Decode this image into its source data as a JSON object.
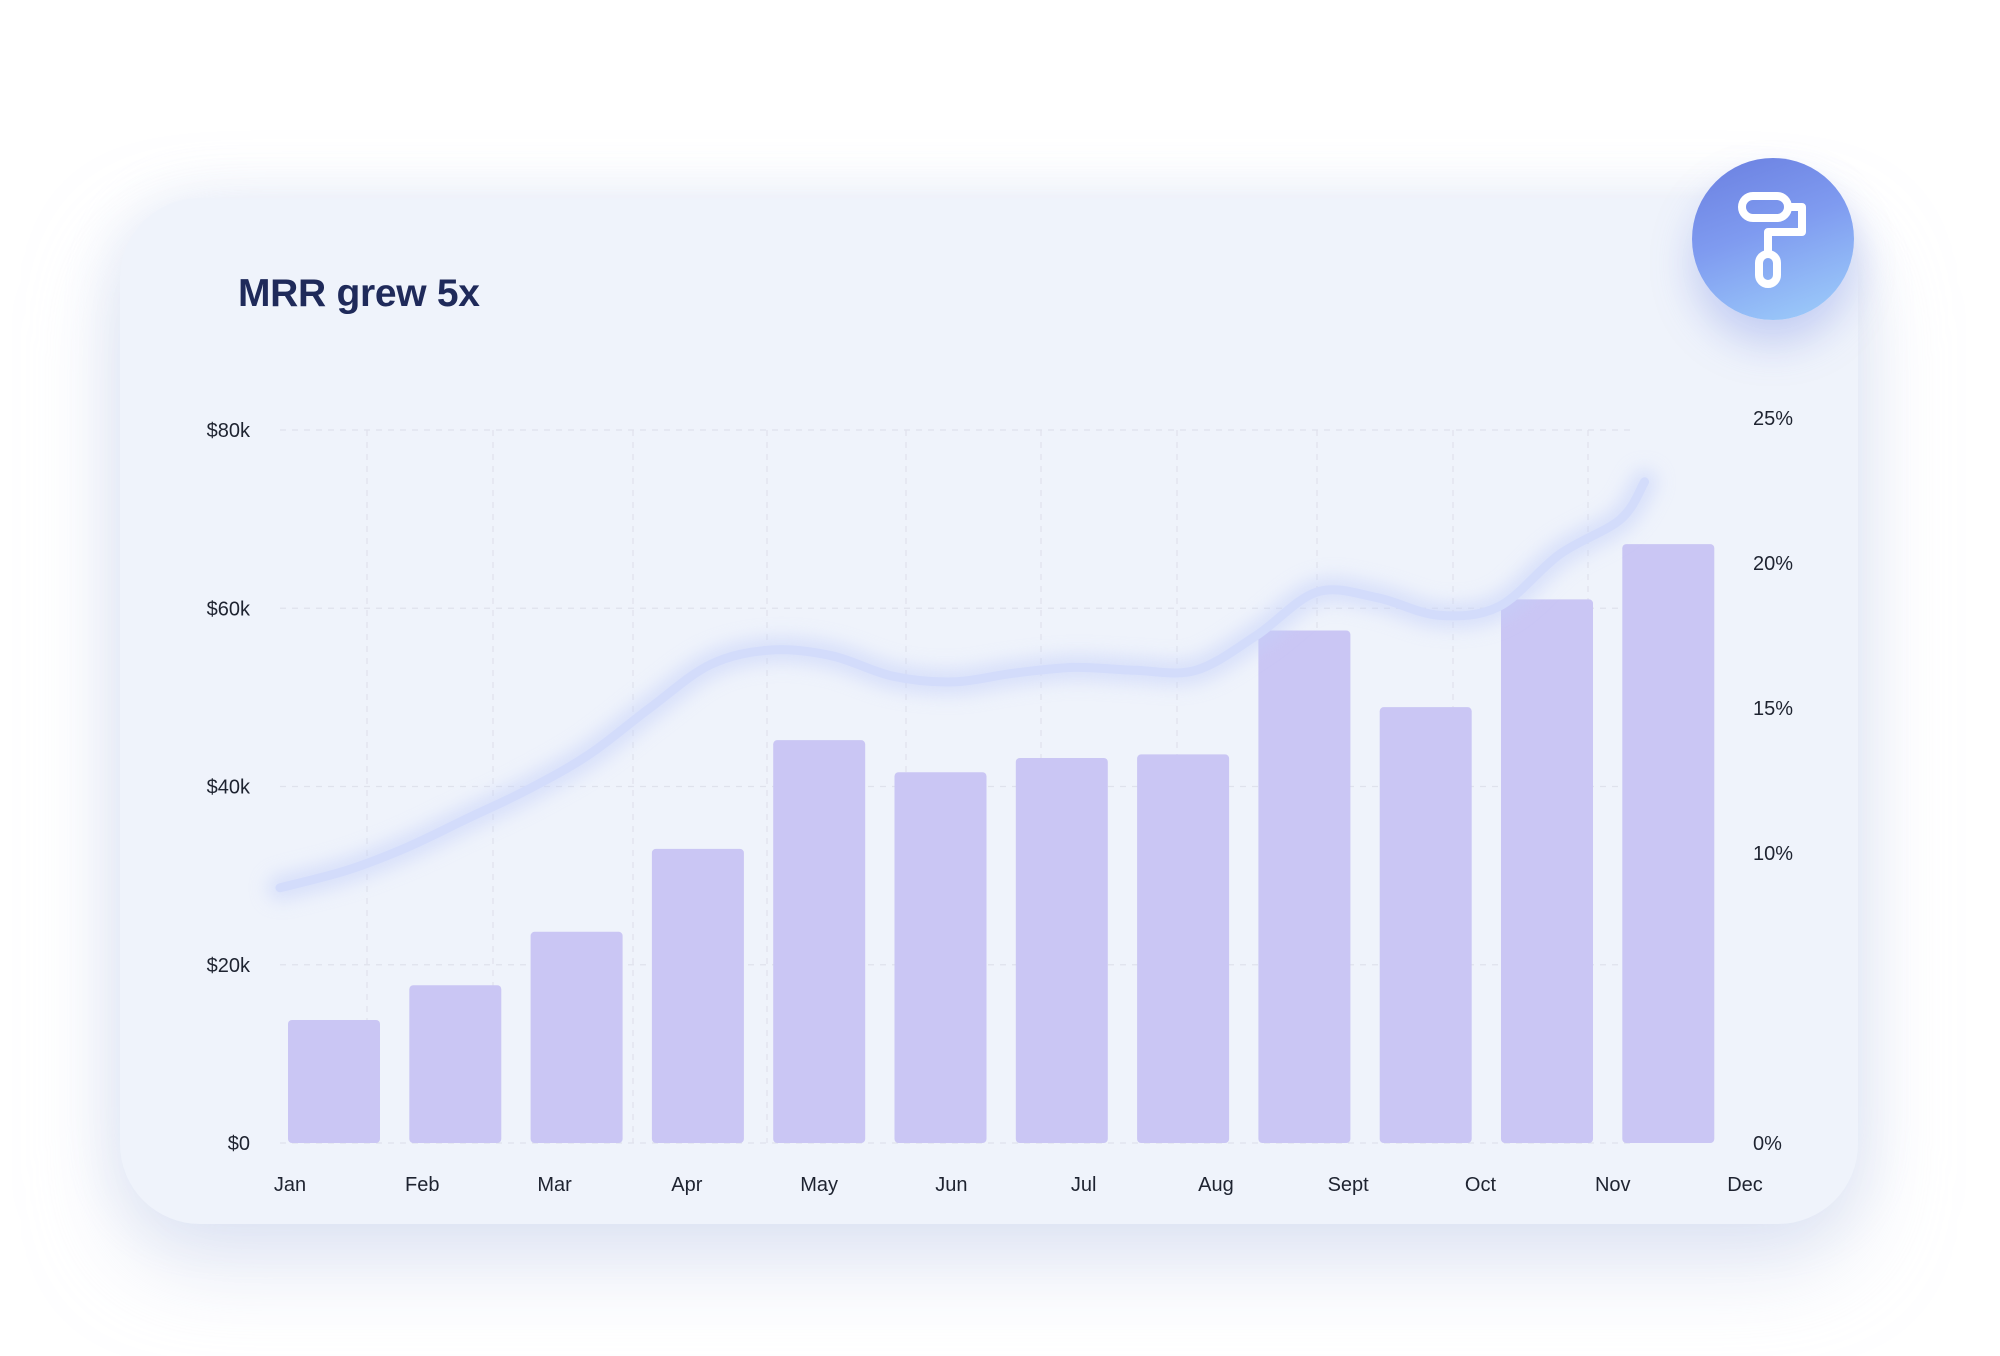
{
  "chart_data": {
    "type": "bar",
    "title": "MRR grew 5x",
    "categories": [
      "Jan",
      "Feb",
      "Mar",
      "Apr",
      "May",
      "Jun",
      "Jul",
      "Aug",
      "Sept",
      "Oct",
      "Nov",
      "Dec"
    ],
    "series": [
      {
        "type": "bar",
        "axis": "left",
        "values": [
          13800,
          17700,
          23700,
          33000,
          45200,
          41600,
          43200,
          43600,
          57500,
          48900,
          61000,
          67200
        ]
      },
      {
        "type": "line",
        "axis": "right",
        "x": [
          0.0,
          0.5,
          1.0,
          1.5,
          2.0,
          2.5,
          3.0,
          3.5,
          4.0,
          4.5,
          5.0,
          5.5,
          6.0,
          6.5,
          7.0,
          7.5,
          8.0,
          8.5,
          9.0,
          9.5,
          10.0,
          10.5,
          11.0,
          11.2
        ],
        "values": [
          8.8,
          9.4,
          10.2,
          11.2,
          12.2,
          13.4,
          15.0,
          16.5,
          17.0,
          16.8,
          16.1,
          15.9,
          16.2,
          16.4,
          16.3,
          16.3,
          17.5,
          19.0,
          18.8,
          18.2,
          18.5,
          20.3,
          21.5,
          22.8
        ]
      }
    ],
    "left_axis": {
      "ylim": [
        0,
        80000
      ],
      "ticks": [
        0,
        20000,
        40000,
        60000,
        80000
      ],
      "tick_labels": [
        "$0",
        "$20k",
        "$40k",
        "$60k",
        "$80k"
      ]
    },
    "right_axis": {
      "ylim": [
        0,
        25
      ],
      "ticks": [
        0,
        10,
        15,
        20,
        25
      ],
      "tick_labels": [
        "0%",
        "10%",
        "15%",
        "20%",
        "25%"
      ]
    },
    "grid": true,
    "colors": {
      "bar": "#cac6f4",
      "line": "#d3dcfb",
      "grid": "#dfe2ec"
    }
  },
  "badge": {
    "icon": "paint-roller-icon"
  }
}
